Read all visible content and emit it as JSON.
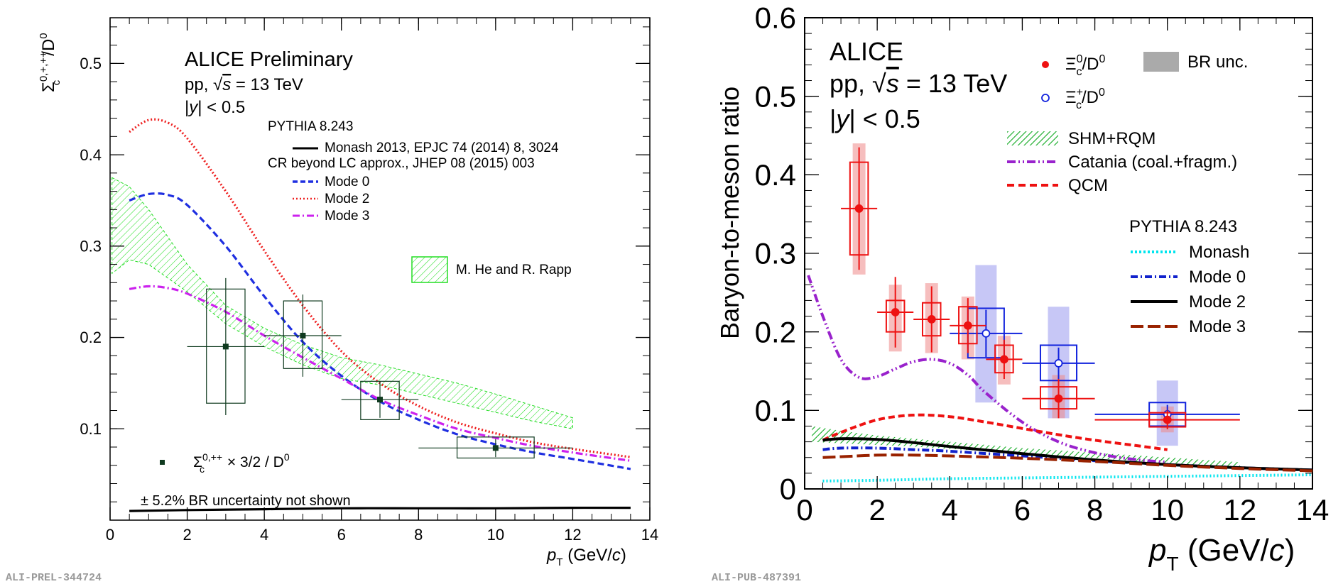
{
  "chart_data": [
    {
      "type": "line",
      "panel": "left",
      "header": [
        "ALICE Preliminary",
        "pp, √s = 13 TeV",
        "|y| < 0.5"
      ],
      "y_title": "Σc0,+,++/D0",
      "x_title": "pT (GeV/c)",
      "xlim": [
        0,
        14
      ],
      "ylim": [
        0,
        0.55
      ],
      "x_ticks": [
        "0",
        "2",
        "4",
        "6",
        "8",
        "10",
        "12",
        "14"
      ],
      "y_ticks": [
        "0.1",
        "0.2",
        "0.3",
        "0.4",
        "0.5"
      ],
      "y_tick_values": [
        0.1,
        0.2,
        0.3,
        0.4,
        0.5
      ],
      "legend": {
        "pythia_title": "PYTHIA 8.243",
        "monash": "Monash 2013, EPJC 74 (2014) 8, 3024",
        "cr_title": "CR beyond LC approx., JHEP 08 (2015) 003",
        "mode0": "Mode 0",
        "mode2": "Mode 2",
        "mode3": "Mode 3",
        "herapp": "M. He and R. Rapp",
        "data_label": "Σc0,++ × 3/2 / D0"
      },
      "br_note": "± 5.2% BR uncertainty not shown",
      "tag": "ALI-PREL-344724",
      "colors": {
        "monash": "#000000",
        "mode0": "#1f2fe0",
        "mode2": "#ee2020",
        "mode3": "#cc22ee",
        "herapp": "#22dd22",
        "data": "#0f3a1f"
      },
      "series": [
        {
          "name": "Monash 2013, EPJC 74 (2014) 8, 3024",
          "style": "solid",
          "x": [
            0.5,
            2,
            4,
            6,
            8,
            10,
            12,
            13.5
          ],
          "y": [
            0.01,
            0.011,
            0.012,
            0.013,
            0.013,
            0.013,
            0.0135,
            0.0135
          ]
        },
        {
          "name": "Mode 0",
          "style": "dashed",
          "x": [
            0.5,
            1,
            1.5,
            2,
            3,
            4,
            5,
            6,
            7,
            8,
            9,
            10,
            11,
            12,
            13.5
          ],
          "y": [
            0.35,
            0.357,
            0.356,
            0.345,
            0.3,
            0.245,
            0.195,
            0.158,
            0.13,
            0.11,
            0.094,
            0.083,
            0.074,
            0.067,
            0.056
          ]
        },
        {
          "name": "Mode 2",
          "style": "dotted",
          "x": [
            0.5,
            1,
            1.5,
            2,
            3,
            4,
            5,
            6,
            7,
            8,
            9,
            10,
            11,
            12,
            13.5
          ],
          "y": [
            0.425,
            0.438,
            0.435,
            0.418,
            0.36,
            0.295,
            0.235,
            0.185,
            0.15,
            0.125,
            0.107,
            0.095,
            0.085,
            0.078,
            0.069
          ]
        },
        {
          "name": "Mode 3",
          "style": "dash-dot",
          "x": [
            0.5,
            1,
            1.5,
            2,
            3,
            4,
            5,
            6,
            7,
            8,
            9,
            10,
            11,
            12,
            13.5
          ],
          "y": [
            0.253,
            0.256,
            0.254,
            0.248,
            0.228,
            0.202,
            0.178,
            0.155,
            0.132,
            0.115,
            0.1,
            0.09,
            0.081,
            0.074,
            0.065
          ]
        }
      ],
      "bands": [
        {
          "name": "M. He and R. Rapp",
          "x": [
            0.05,
            0.5,
            1,
            2,
            3,
            4,
            5,
            6,
            7,
            8,
            9,
            10,
            11,
            12
          ],
          "y_low": [
            0.27,
            0.285,
            0.28,
            0.25,
            0.215,
            0.19,
            0.17,
            0.155,
            0.148,
            0.138,
            0.128,
            0.118,
            0.108,
            0.1
          ],
          "y_high": [
            0.375,
            0.365,
            0.34,
            0.28,
            0.235,
            0.21,
            0.192,
            0.178,
            0.17,
            0.16,
            0.15,
            0.138,
            0.125,
            0.112
          ]
        }
      ],
      "points": [
        {
          "x": 3,
          "y": 0.19,
          "xerr": 1.0,
          "yerr": 0.075,
          "sys_w": 0.5,
          "sys_lo": 0.128,
          "sys_hi": 0.253
        },
        {
          "x": 5,
          "y": 0.202,
          "xerr": 1.0,
          "yerr": 0.045,
          "sys_w": 0.5,
          "sys_lo": 0.166,
          "sys_hi": 0.24
        },
        {
          "x": 7,
          "y": 0.132,
          "xerr": 1.0,
          "yerr": 0.02,
          "sys_w": 0.5,
          "sys_lo": 0.11,
          "sys_hi": 0.152
        },
        {
          "x": 10,
          "y": 0.079,
          "xerr": 2.0,
          "yerr": 0.01,
          "sys_w": 1.0,
          "sys_lo": 0.068,
          "sys_hi": 0.091
        }
      ]
    },
    {
      "type": "line",
      "panel": "right",
      "header": [
        "ALICE",
        "pp, √s = 13 TeV",
        "|y| < 0.5"
      ],
      "y_title": "Baryon-to-meson ratio",
      "x_title": "pT (GeV/c)",
      "xlim": [
        0,
        14
      ],
      "ylim": [
        0,
        0.6
      ],
      "x_ticks": [
        "0",
        "2",
        "4",
        "6",
        "8",
        "10",
        "12",
        "14"
      ],
      "y_ticks": [
        "0",
        "0.1",
        "0.2",
        "0.3",
        "0.4",
        "0.5",
        "0.6"
      ],
      "y_tick_values": [
        0,
        0.1,
        0.2,
        0.3,
        0.4,
        0.5,
        0.6
      ],
      "legend": {
        "xi0": "Ξc0/D0",
        "xip": "Ξc+/D0",
        "br": "BR unc.",
        "shm": "SHM+RQM",
        "catania": "Catania (coal.+fragm.)",
        "qcm": "QCM",
        "pythia_title": "PYTHIA 8.243",
        "monash": "Monash",
        "mode0": "Mode 0",
        "mode2": "Mode 2",
        "mode3": "Mode 3"
      },
      "tag": "ALI-PUB-487391",
      "colors": {
        "xi0": "#ee1111",
        "xip": "#1122dd",
        "br": "#aaaaaa",
        "shm": "#11aa22",
        "catania": "#9922cc",
        "qcm": "#ee1111",
        "monash": "#00e5ee",
        "mode0": "#1122cc",
        "mode2": "#000000",
        "mode3": "#992200"
      },
      "series": [
        {
          "name": "Catania (coal.+fragm.)",
          "style": "dash-dot-dot",
          "x": [
            0.1,
            0.5,
            1,
            1.5,
            2,
            2.5,
            3,
            3.5,
            4,
            4.5,
            5,
            6,
            7,
            8,
            9,
            10
          ],
          "y": [
            0.272,
            0.22,
            0.165,
            0.142,
            0.143,
            0.153,
            0.162,
            0.165,
            0.16,
            0.145,
            0.122,
            0.085,
            0.06,
            0.046,
            0.038,
            0.034
          ]
        },
        {
          "name": "QCM",
          "style": "dashed",
          "x": [
            0.5,
            1,
            2,
            3,
            4,
            5,
            6,
            7,
            8,
            9,
            10
          ],
          "y": [
            0.062,
            0.072,
            0.088,
            0.094,
            0.092,
            0.085,
            0.077,
            0.069,
            0.062,
            0.056,
            0.05
          ]
        },
        {
          "name": "Monash",
          "style": "dotted",
          "x": [
            0.5,
            2,
            4,
            6,
            8,
            10,
            12,
            14
          ],
          "y": [
            0.01,
            0.011,
            0.013,
            0.014,
            0.015,
            0.016,
            0.017,
            0.018
          ]
        },
        {
          "name": "Mode 0",
          "style": "dash-dot",
          "x": [
            0.5,
            1,
            2,
            3,
            4,
            6,
            8,
            10,
            12,
            14
          ],
          "y": [
            0.05,
            0.052,
            0.052,
            0.05,
            0.048,
            0.042,
            0.036,
            0.031,
            0.027,
            0.024
          ]
        },
        {
          "name": "Mode 2",
          "style": "solid",
          "x": [
            0.5,
            1,
            2,
            3,
            4,
            6,
            8,
            10,
            12,
            14
          ],
          "y": [
            0.062,
            0.064,
            0.063,
            0.059,
            0.054,
            0.045,
            0.037,
            0.031,
            0.027,
            0.024
          ]
        },
        {
          "name": "Mode 3",
          "style": "long-dash",
          "x": [
            0.5,
            1,
            2,
            3,
            4,
            6,
            8,
            10,
            12,
            14
          ],
          "y": [
            0.04,
            0.041,
            0.043,
            0.043,
            0.042,
            0.039,
            0.035,
            0.03,
            0.026,
            0.023
          ]
        }
      ],
      "bands": [
        {
          "name": "SHM+RQM",
          "x": [
            0.2,
            1,
            2,
            3,
            4,
            5,
            6,
            7,
            8,
            9,
            10,
            11,
            12
          ],
          "y_low": [
            0.06,
            0.058,
            0.056,
            0.054,
            0.051,
            0.048,
            0.045,
            0.042,
            0.039,
            0.036,
            0.033,
            0.03,
            0.028
          ],
          "y_high": [
            0.08,
            0.074,
            0.068,
            0.064,
            0.06,
            0.056,
            0.052,
            0.049,
            0.046,
            0.043,
            0.04,
            0.037,
            0.034
          ]
        }
      ],
      "xi0_points": [
        {
          "x": 1.5,
          "y": 0.357,
          "xerr": 0.5,
          "yerr": 0.078,
          "sys_w": 0.25,
          "sys_lo": 0.298,
          "sys_hi": 0.416,
          "br_lo": 0.273,
          "br_hi": 0.44
        },
        {
          "x": 2.5,
          "y": 0.225,
          "xerr": 0.5,
          "yerr": 0.045,
          "sys_w": 0.25,
          "sys_lo": 0.2,
          "sys_hi": 0.24,
          "br_lo": 0.175,
          "br_hi": 0.26
        },
        {
          "x": 3.5,
          "y": 0.216,
          "xerr": 0.5,
          "yerr": 0.042,
          "sys_w": 0.25,
          "sys_lo": 0.195,
          "sys_hi": 0.237,
          "br_lo": 0.173,
          "br_hi": 0.262
        },
        {
          "x": 4.5,
          "y": 0.208,
          "xerr": 0.5,
          "yerr": 0.035,
          "sys_w": 0.25,
          "sys_lo": 0.185,
          "sys_hi": 0.232,
          "br_lo": 0.165,
          "br_hi": 0.245
        },
        {
          "x": 5.5,
          "y": 0.165,
          "xerr": 0.5,
          "yerr": 0.025,
          "sys_w": 0.25,
          "sys_lo": 0.148,
          "sys_hi": 0.183,
          "br_lo": 0.133,
          "br_hi": 0.195
        },
        {
          "x": 7.0,
          "y": 0.115,
          "xerr": 1.0,
          "yerr": 0.025,
          "sys_w": 0.5,
          "sys_lo": 0.102,
          "sys_hi": 0.13,
          "br_lo": 0.09,
          "br_hi": 0.145
        },
        {
          "x": 10.0,
          "y": 0.088,
          "xerr": 2.0,
          "yerr": 0.012,
          "sys_w": 0.5,
          "sys_lo": 0.079,
          "sys_hi": 0.097,
          "br_lo": 0.072,
          "br_hi": 0.105
        }
      ],
      "xip_points": [
        {
          "x": 5.0,
          "y": 0.198,
          "xerr": 1.0,
          "yerr": 0.03,
          "sys_w": 0.5,
          "sys_lo": 0.167,
          "sys_hi": 0.23,
          "br_lo": 0.11,
          "br_hi": 0.285
        },
        {
          "x": 7.0,
          "y": 0.16,
          "xerr": 1.0,
          "yerr": 0.02,
          "sys_w": 0.5,
          "sys_lo": 0.138,
          "sys_hi": 0.183,
          "br_lo": 0.09,
          "br_hi": 0.232
        },
        {
          "x": 10.0,
          "y": 0.095,
          "xerr": 2.0,
          "yerr": 0.012,
          "sys_w": 0.5,
          "sys_lo": 0.08,
          "sys_hi": 0.11,
          "br_lo": 0.055,
          "br_hi": 0.138
        }
      ]
    }
  ]
}
